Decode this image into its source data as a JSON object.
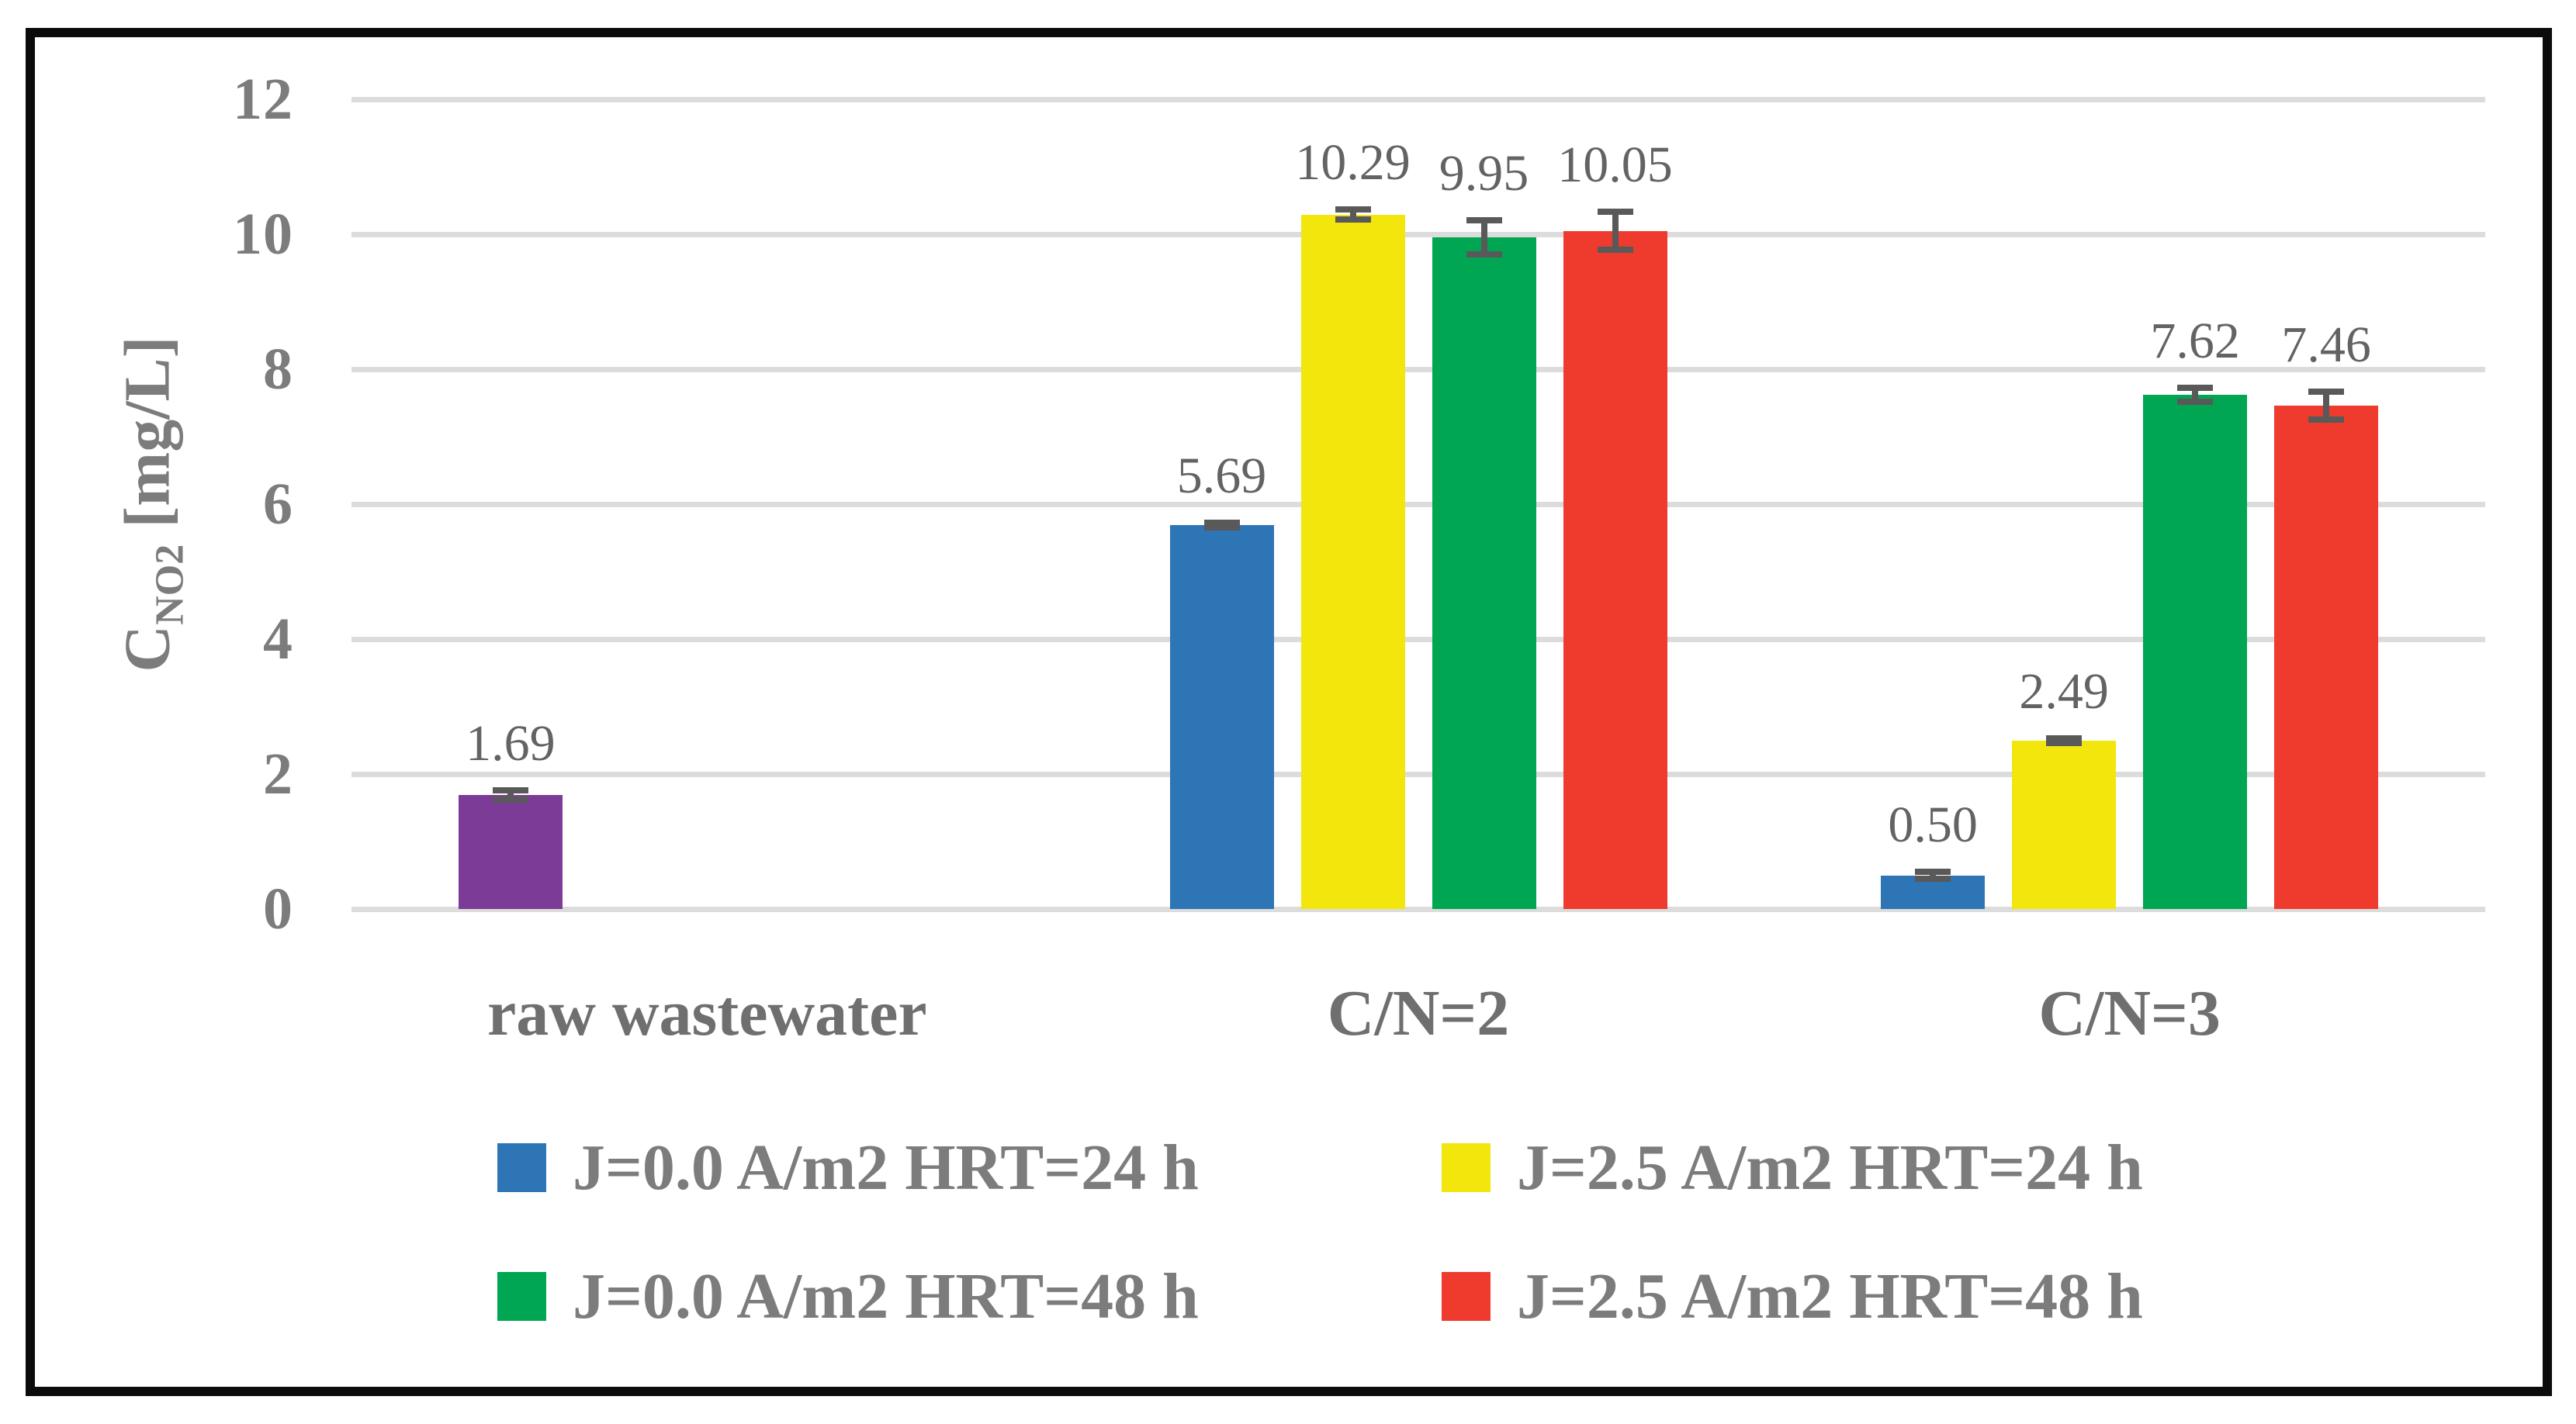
{
  "chart_data": {
    "type": "bar",
    "ylabel_base": "C",
    "ylabel_sub": "NO2",
    "ylabel_units": " [mg/L]",
    "ylim": [
      0,
      12
    ],
    "yticks": [
      "0",
      "2",
      "4",
      "6",
      "8",
      "10",
      "12"
    ],
    "grid": "horizontal",
    "legend_position": "bottom-2x2",
    "categories": [
      "raw wastewater",
      "C/N=2",
      "C/N=3"
    ],
    "series": [
      {
        "name": "J=0.0 A/m2 HRT=24 h",
        "color": "#2E75B6",
        "values": [
          1.69,
          5.69,
          0.5
        ],
        "value_labels": [
          "1.69",
          "5.69",
          "0.50"
        ],
        "errors": [
          0.12,
          0.08,
          0.1
        ],
        "point_colors": [
          "#7B3B97",
          null,
          null
        ]
      },
      {
        "name": "J=2.5 A/m2 HRT=24 h",
        "color": "#F2E60D",
        "values": [
          null,
          10.29,
          2.49
        ],
        "value_labels": [
          null,
          "10.29",
          "2.49"
        ],
        "errors": [
          null,
          0.12,
          0.08
        ],
        "point_colors": [
          null,
          null,
          null
        ]
      },
      {
        "name": "J=0.0 A/m2 HRT=48 h",
        "color": "#00A651",
        "values": [
          null,
          9.95,
          7.62
        ],
        "value_labels": [
          null,
          "9.95",
          "7.62"
        ],
        "errors": [
          null,
          0.3,
          0.15
        ],
        "point_colors": [
          null,
          null,
          null
        ]
      },
      {
        "name": "J=2.5 A/m2 HRT=48 h",
        "color": "#EE3B2E",
        "values": [
          null,
          10.05,
          7.46
        ],
        "value_labels": [
          null,
          "10.05",
          "7.46"
        ],
        "errors": [
          null,
          0.33,
          0.25
        ],
        "point_colors": [
          null,
          null,
          null
        ]
      }
    ]
  },
  "style_colors": {
    "background": "#FFFFFF",
    "frame_border": "#0B0B0B",
    "gridline": "#DCDCDC",
    "error_bar": "#595959",
    "tick_text": "#7C7C7C",
    "data_label_text": "#636363",
    "category_text": "#6F6F6F",
    "axis_label_text": "#7C7C7C",
    "legend_text": "#7C7C7C"
  }
}
